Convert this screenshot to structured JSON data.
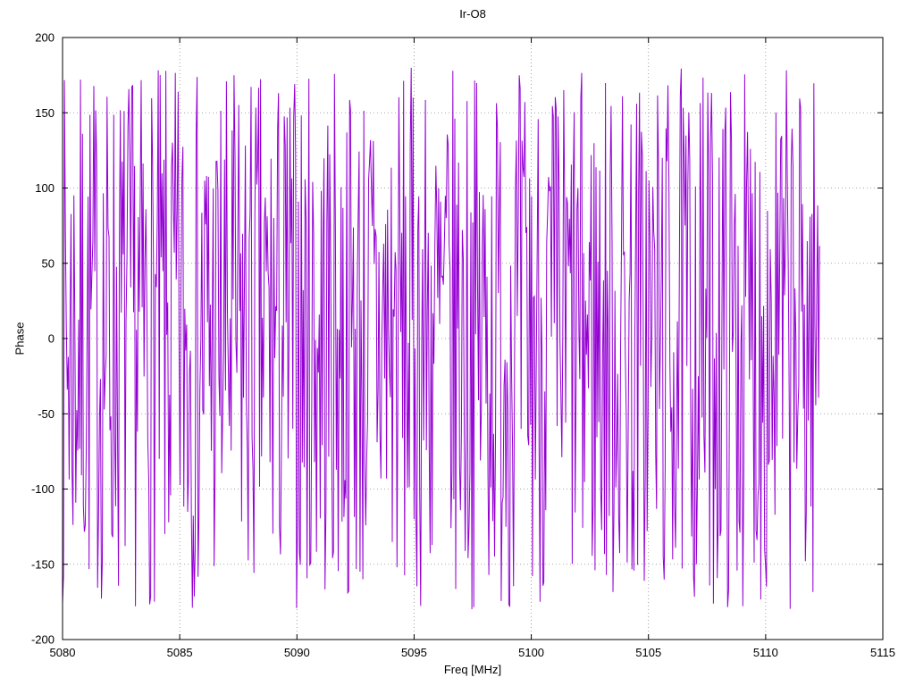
{
  "chart_data": {
    "type": "line",
    "title": "Ir-O8",
    "xlabel": "Freq [MHz]",
    "ylabel": "Phase",
    "xlim": [
      5080,
      5115
    ],
    "ylim": [
      -200,
      200
    ],
    "x_tick_labels": [
      "5080",
      "5085",
      "5090",
      "5095",
      "5100",
      "5105",
      "5110",
      "5115"
    ],
    "x_tick_values": [
      5080,
      5085,
      5090,
      5095,
      5100,
      5105,
      5110,
      5115
    ],
    "y_tick_labels": [
      "-200",
      "-150",
      "-100",
      "-50",
      "0",
      "50",
      "100",
      "150",
      "200"
    ],
    "y_tick_values": [
      -200,
      -150,
      -100,
      -50,
      0,
      50,
      100,
      150,
      200
    ],
    "grid": "dotted",
    "legend": "none",
    "series": [
      {
        "name": "Ir-O8 phase",
        "color": "#9400d3",
        "x_start": 5080.0,
        "x_end": 5112.3,
        "n_points": 800,
        "y_distribution": "uniform",
        "y_min": -180,
        "y_max": 180,
        "prng_seed": 7,
        "description": "wrapped interferometric phase noise, values uniformly spread between -180 and 180 degrees across the sampled band"
      }
    ]
  }
}
